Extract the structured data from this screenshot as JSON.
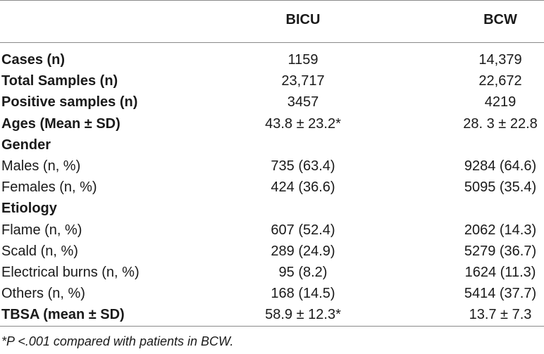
{
  "table": {
    "columns": [
      "BICU",
      "BCW"
    ],
    "rows": [
      {
        "label": "Cases (n)",
        "bold": true,
        "bicu": "1159",
        "bcw": "14,379"
      },
      {
        "label": "Total Samples (n)",
        "bold": true,
        "bicu": "23,717",
        "bcw": "22,672"
      },
      {
        "label": "Positive samples (n)",
        "bold": true,
        "bicu": "3457",
        "bcw": "4219"
      },
      {
        "label": "Ages (Mean ± SD)",
        "bold": true,
        "bicu": "43.8 ± 23.2*",
        "bcw": "28. 3 ± 22.8"
      },
      {
        "label": "Gender",
        "bold": true,
        "bicu": "",
        "bcw": ""
      },
      {
        "label": "Males (n, %)",
        "bold": false,
        "bicu": "735 (63.4)",
        "bcw": "9284 (64.6)"
      },
      {
        "label": "Females (n, %)",
        "bold": false,
        "bicu": "424 (36.6)",
        "bcw": "5095 (35.4)"
      },
      {
        "label": "Etiology",
        "bold": true,
        "bicu": "",
        "bcw": ""
      },
      {
        "label": "Flame (n, %)",
        "bold": false,
        "bicu": "607 (52.4)",
        "bcw": "2062 (14.3)"
      },
      {
        "label": "Scald (n, %)",
        "bold": false,
        "bicu": "289 (24.9)",
        "bcw": "5279 (36.7)"
      },
      {
        "label": "Electrical burns (n, %)",
        "bold": false,
        "bicu": "95 (8.2)",
        "bcw": "1624 (11.3)"
      },
      {
        "label": "Others (n, %)",
        "bold": false,
        "bicu": "168 (14.5)",
        "bcw": "5414 (37.7)"
      },
      {
        "label": "TBSA (mean ± SD)",
        "bold": true,
        "bicu": "58.9 ± 12.3*",
        "bcw": "13.7 ± 7.3"
      }
    ],
    "footnote": "*P <.001 compared with patients in BCW."
  }
}
